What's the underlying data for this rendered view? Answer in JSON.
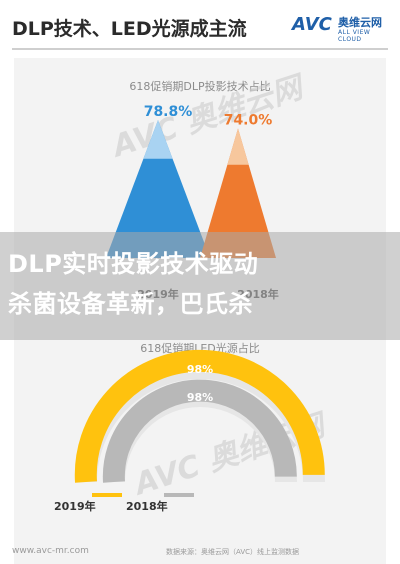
{
  "header": {
    "title": "DLP技术、LED光源成主流",
    "logo_brand": "AVC",
    "logo_cn": "奥维云网",
    "logo_en": "ALL VIEW CLOUD"
  },
  "overlay": {
    "line1": "DLP实时投影技术驱动",
    "line2": "杀菌设备革新，巴氏杀"
  },
  "watermark": {
    "text": "AVC 奥维云网",
    "sub": "ALL VIEW CLOUD"
  },
  "footer": {
    "url": "www.avc-mr.com",
    "source": "数据来源：奥维云网（AVC）线上监测数据"
  },
  "colors": {
    "blue": "#2f8fd6",
    "blue_light": "#a9d3f2",
    "orange": "#ee7a2f",
    "orange_light": "#f7c79d",
    "yellow": "#ffc20e",
    "grey": "#b8b8b8"
  },
  "chart_data": [
    {
      "type": "bar",
      "title": "618促销期DLP投影技术占比",
      "categories": [
        "2019年",
        "2018年"
      ],
      "values": [
        78.8,
        74.0
      ],
      "value_labels": [
        "78.8%",
        "74.0%"
      ],
      "shape": "triangle",
      "ylim": [
        0,
        100
      ]
    },
    {
      "type": "pie",
      "title": "618促销期LED光源占比",
      "series": [
        {
          "label": "2019年",
          "value": 98,
          "value_label": "98%"
        },
        {
          "label": "2018年",
          "value": 98,
          "value_label": "98%"
        }
      ],
      "shape": "concentric semicircle gauge"
    }
  ]
}
